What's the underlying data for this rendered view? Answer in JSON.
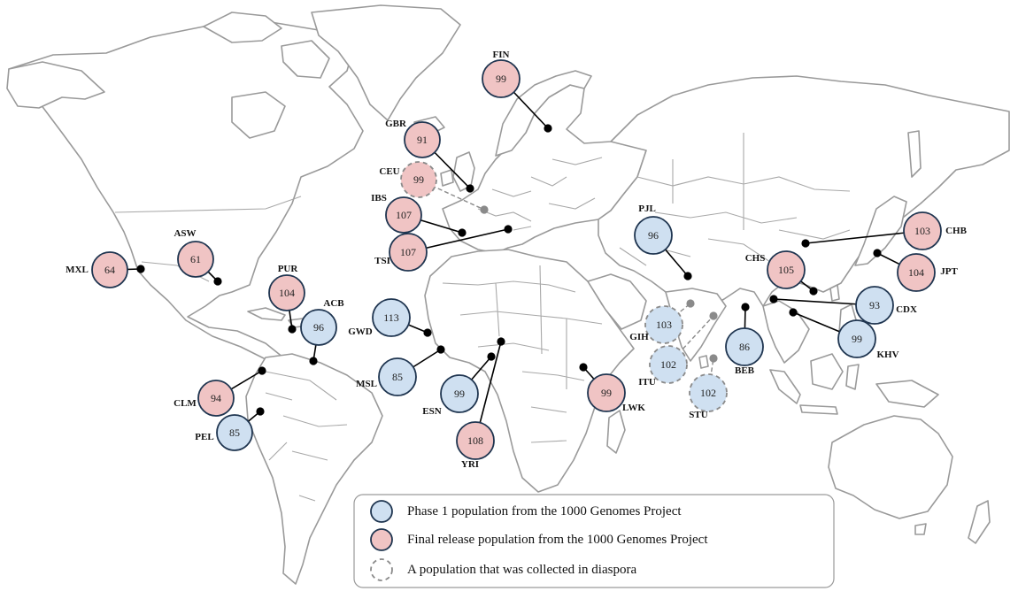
{
  "colors": {
    "phase1_fill": "#cfe0f1",
    "final_fill": "#f0c4c4",
    "circle_stroke": "#1f3550",
    "diaspora_stroke": "#8a8a8a"
  },
  "populations": [
    {
      "code": "FIN",
      "n": "99",
      "type": "final"
    },
    {
      "code": "GBR",
      "n": "91",
      "type": "final"
    },
    {
      "code": "CEU",
      "n": "99",
      "type": "final-diaspora"
    },
    {
      "code": "IBS",
      "n": "107",
      "type": "final"
    },
    {
      "code": "TSI",
      "n": "107",
      "type": "final"
    },
    {
      "code": "ASW",
      "n": "61",
      "type": "final"
    },
    {
      "code": "MXL",
      "n": "64",
      "type": "final"
    },
    {
      "code": "PUR",
      "n": "104",
      "type": "final"
    },
    {
      "code": "ACB",
      "n": "96",
      "type": "phase1"
    },
    {
      "code": "GWD",
      "n": "113",
      "type": "phase1"
    },
    {
      "code": "MSL",
      "n": "85",
      "type": "phase1"
    },
    {
      "code": "ESN",
      "n": "99",
      "type": "phase1"
    },
    {
      "code": "YRI",
      "n": "108",
      "type": "final"
    },
    {
      "code": "LWK",
      "n": "99",
      "type": "final"
    },
    {
      "code": "CLM",
      "n": "94",
      "type": "final"
    },
    {
      "code": "PEL",
      "n": "85",
      "type": "phase1"
    },
    {
      "code": "PJL",
      "n": "96",
      "type": "phase1"
    },
    {
      "code": "GIH",
      "n": "103",
      "type": "phase1-diaspora"
    },
    {
      "code": "ITU",
      "n": "102",
      "type": "phase1-diaspora"
    },
    {
      "code": "STU",
      "n": "102",
      "type": "phase1-diaspora"
    },
    {
      "code": "BEB",
      "n": "86",
      "type": "phase1"
    },
    {
      "code": "CHS",
      "n": "105",
      "type": "final"
    },
    {
      "code": "CHB",
      "n": "103",
      "type": "final"
    },
    {
      "code": "JPT",
      "n": "104",
      "type": "final"
    },
    {
      "code": "CDX",
      "n": "93",
      "type": "phase1"
    },
    {
      "code": "KHV",
      "n": "99",
      "type": "phase1"
    }
  ],
  "legend": {
    "phase1": "Phase 1 population from the 1000 Genomes Project",
    "final": "Final release population from the 1000 Genomes Project",
    "diaspora": "A population that was collected in diaspora"
  }
}
